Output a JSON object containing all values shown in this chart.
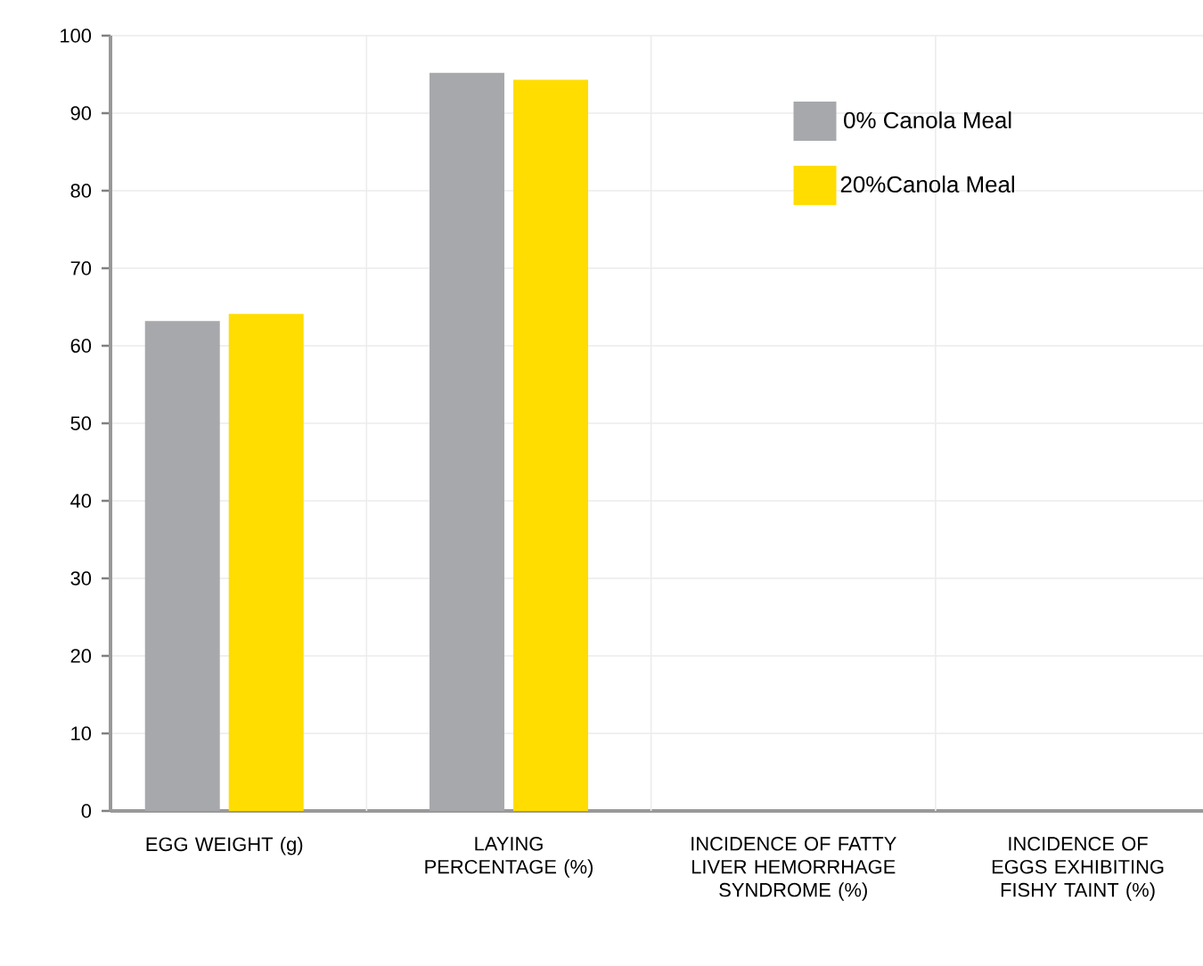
{
  "chart_data": {
    "type": "bar",
    "categories": [
      "EGG WEIGHT (g)",
      "LAYING PERCENTAGE (%)",
      "INCIDENCE OF FATTY LIVER HEMORRHAGE SYNDROME (%)",
      "INCIDENCE OF EGGS EXHIBITING FISHY TAINT (%)"
    ],
    "series": [
      {
        "name": "0% Canola Meal",
        "color": "#a7a8ab",
        "values": [
          63.2,
          95.2,
          0,
          0
        ]
      },
      {
        "name": "20%Canola Meal",
        "color": "#ffdd00",
        "values": [
          64.1,
          94.3,
          0,
          0
        ]
      }
    ],
    "ylim": [
      0,
      100
    ],
    "yticks": [
      0,
      10,
      20,
      30,
      40,
      50,
      60,
      70,
      80,
      90,
      100
    ],
    "grid": true,
    "legend": "top right"
  }
}
